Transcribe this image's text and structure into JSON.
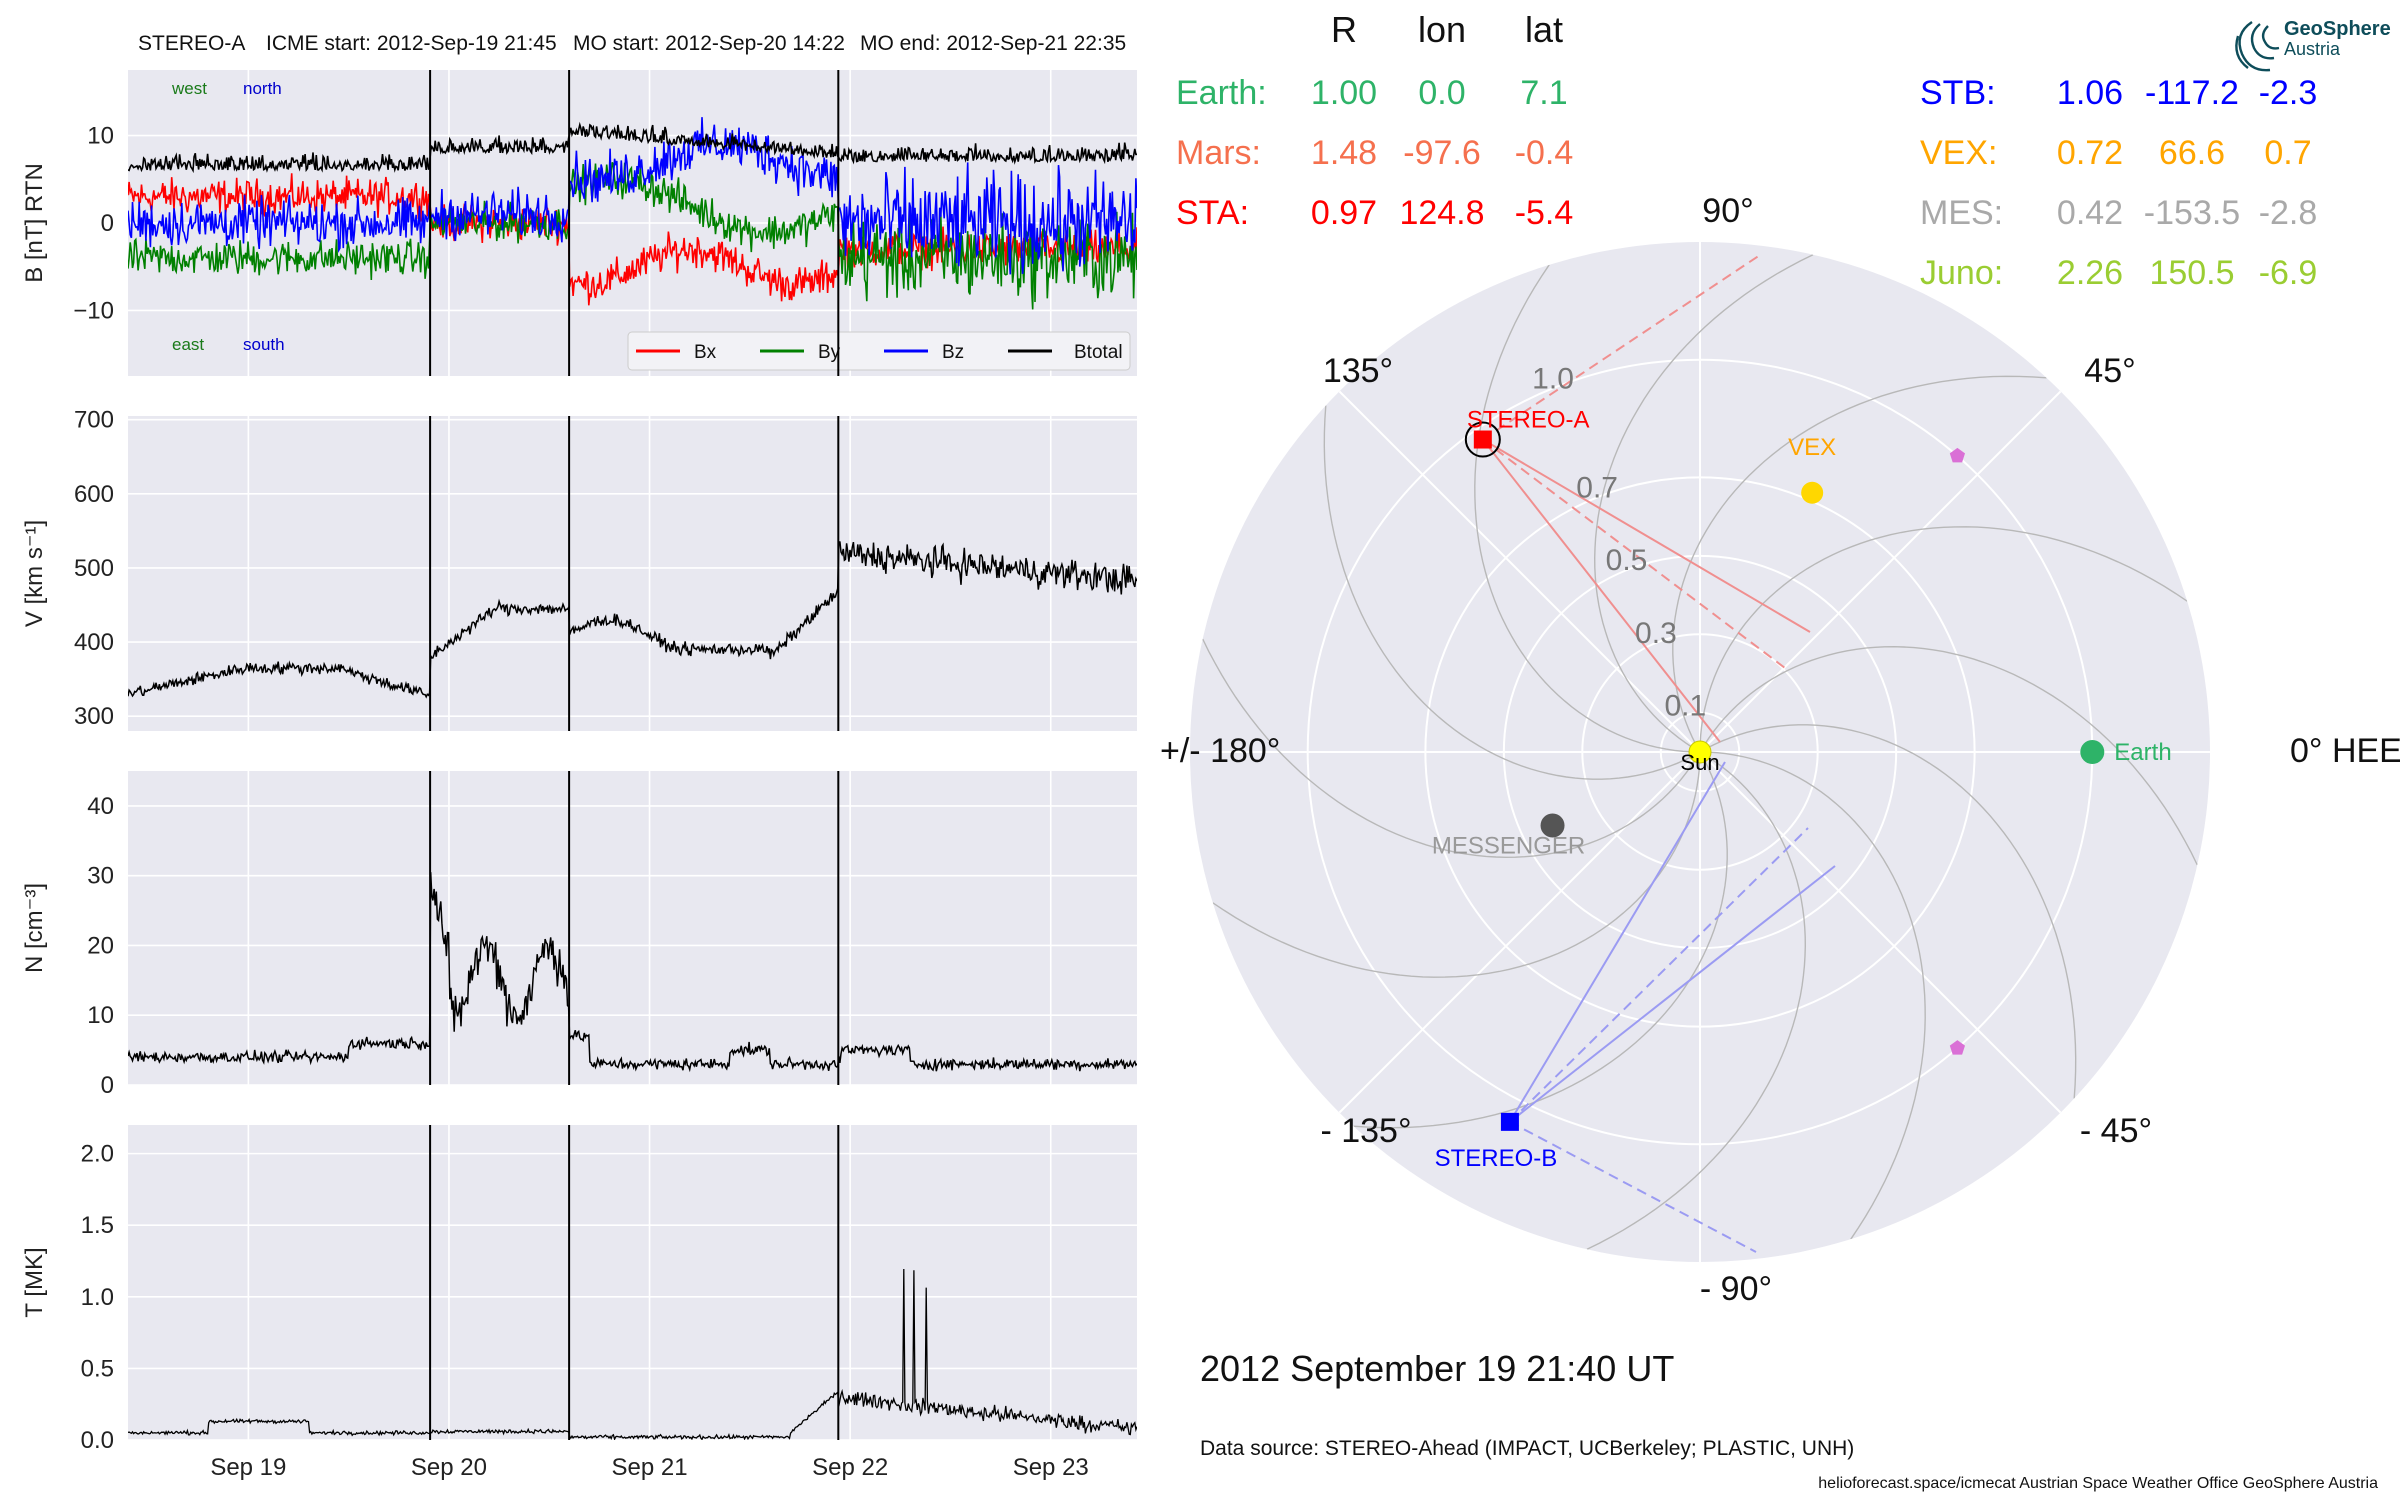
{
  "header": {
    "spacecraft": "STEREO-A",
    "icme_start": "ICME start: 2012-Sep-19 21:45",
    "mo_start": "MO start: 2012-Sep-20 14:22",
    "mo_end": "MO end: 2012-Sep-21 22:35"
  },
  "logo": {
    "line1": "GeoSphere",
    "line2": "Austria",
    "icon": "geosphere-logo-icon"
  },
  "timestamp": "2012 September 19  21:40 UT",
  "data_source": "Data source: STEREO-Ahead (IMPACT, UCBerkeley; PLASTIC, UNH)",
  "credits": "helioforecast.space/icmecat   Austrian Space Weather Office   GeoSphere Austria",
  "position_table": {
    "columns": [
      "R",
      "lon",
      "lat"
    ],
    "left": [
      {
        "name": "Earth:",
        "R": "1.00",
        "lon": "0.0",
        "lat": "7.1",
        "color": "#2eb368"
      },
      {
        "name": "Mars:",
        "R": "1.48",
        "lon": "-97.6",
        "lat": "-0.4",
        "color": "#f5704e"
      },
      {
        "name": "STA:",
        "R": "0.97",
        "lon": "124.8",
        "lat": "-5.4",
        "color": "#ff0000"
      }
    ],
    "right": [
      {
        "name": "STB:",
        "R": "1.06",
        "lon": "-117.2",
        "lat": "-2.3",
        "color": "#0000ff"
      },
      {
        "name": "VEX:",
        "R": "0.72",
        "lon": "66.6",
        "lat": "0.7",
        "color": "#ffa500"
      },
      {
        "name": "MES:",
        "R": "0.42",
        "lon": "-153.5",
        "lat": "-2.8",
        "color": "#a9a9a9"
      },
      {
        "name": "Juno:",
        "R": "2.26",
        "lon": "150.5",
        "lat": "-6.9",
        "color": "#9acd32"
      }
    ]
  },
  "chart_data": [
    {
      "type": "line",
      "panel": "B",
      "ylabel": "B [nT] RTN",
      "ylim": [
        -17.5,
        17.5
      ],
      "yticks": [
        -10,
        0,
        10
      ],
      "ytick_labels": [
        "−10",
        "0",
        "10"
      ],
      "annotations": {
        "west": "west",
        "north": "north",
        "east": "east",
        "south": "south"
      },
      "legend_position": "lower-right",
      "series": [
        {
          "name": "Bx",
          "color": "#ff0000"
        },
        {
          "name": "By",
          "color": "#008000"
        },
        {
          "name": "Bz",
          "color": "#0000ff"
        },
        {
          "name": "Btotal",
          "color": "#000000"
        }
      ]
    },
    {
      "type": "line",
      "panel": "V",
      "ylabel": "V [km s⁻¹]",
      "ylim": [
        280,
        705
      ],
      "yticks": [
        300,
        400,
        500,
        600,
        700
      ],
      "ytick_labels": [
        "300",
        "400",
        "500",
        "600",
        "700"
      ],
      "series": [
        {
          "color": "#000000"
        }
      ]
    },
    {
      "type": "line",
      "panel": "N",
      "ylabel": "N [cm⁻³]",
      "ylim": [
        0,
        45
      ],
      "yticks": [
        0,
        10,
        20,
        30,
        40
      ],
      "ytick_labels": [
        "0",
        "10",
        "20",
        "30",
        "40"
      ],
      "series": [
        {
          "color": "#000000"
        }
      ]
    },
    {
      "type": "line",
      "panel": "T",
      "ylabel": "T [MK]",
      "ylim": [
        0,
        2.2
      ],
      "yticks": [
        0,
        0.5,
        1.0,
        1.5,
        2.0
      ],
      "ytick_labels": [
        "0.0",
        "0.5",
        "1.0",
        "1.5",
        "2.0"
      ],
      "series": [
        {
          "color": "#000000"
        }
      ]
    }
  ],
  "time_axis": {
    "range_days": [
      18.4,
      23.43
    ],
    "ticks": [
      {
        "day": 19,
        "label": "Sep 19"
      },
      {
        "day": 20,
        "label": "Sep 20"
      },
      {
        "day": 21,
        "label": "Sep 21"
      },
      {
        "day": 22,
        "label": "Sep 22"
      },
      {
        "day": 23,
        "label": "Sep 23"
      }
    ],
    "events": [
      {
        "day": 19.906,
        "label": "ICME start"
      },
      {
        "day": 20.599,
        "label": "MO start"
      },
      {
        "day": 21.941,
        "label": "MO end"
      }
    ]
  },
  "polar_plot": {
    "angle_labels": [
      {
        "deg": 0,
        "label": "0° HEEQ"
      },
      {
        "deg": 45,
        "label": "45°"
      },
      {
        "deg": 90,
        "label": "90°"
      },
      {
        "deg": 135,
        "label": "135°"
      },
      {
        "deg": 180,
        "label": "+/- 180°"
      },
      {
        "deg": -135,
        "label": "- 135°"
      },
      {
        "deg": -90,
        "label": "- 90°"
      },
      {
        "deg": -45,
        "label": "- 45°"
      }
    ],
    "r_max": 1.3,
    "radial_labels": [
      "0.1",
      "0.3",
      "0.5",
      "0.7",
      "1.0"
    ],
    "radial_values": [
      0.1,
      0.3,
      0.5,
      0.7,
      1.0
    ],
    "bodies": [
      {
        "name": "Sun",
        "r": 0,
        "lon": 0,
        "color": "#ffff00"
      },
      {
        "name": "Earth",
        "r": 1.0,
        "lon": 0.0,
        "color": "#2eb368"
      },
      {
        "name": "VEX",
        "r": 0.72,
        "lon": 66.6,
        "color": "#ffd700"
      },
      {
        "name": "MESSENGER",
        "r": 0.42,
        "lon": -153.5,
        "color": "#555555"
      },
      {
        "name": "STEREO-A",
        "r": 0.97,
        "lon": 124.8,
        "color": "#ff0000"
      },
      {
        "name": "STEREO-B",
        "r": 1.06,
        "lon": -117.2,
        "color": "#0000ff"
      },
      {
        "name": "",
        "r": 1.0,
        "lon": 49,
        "color": "#da70d6"
      },
      {
        "name": "",
        "r": 1.0,
        "lon": -49,
        "color": "#da70d6"
      }
    ]
  }
}
